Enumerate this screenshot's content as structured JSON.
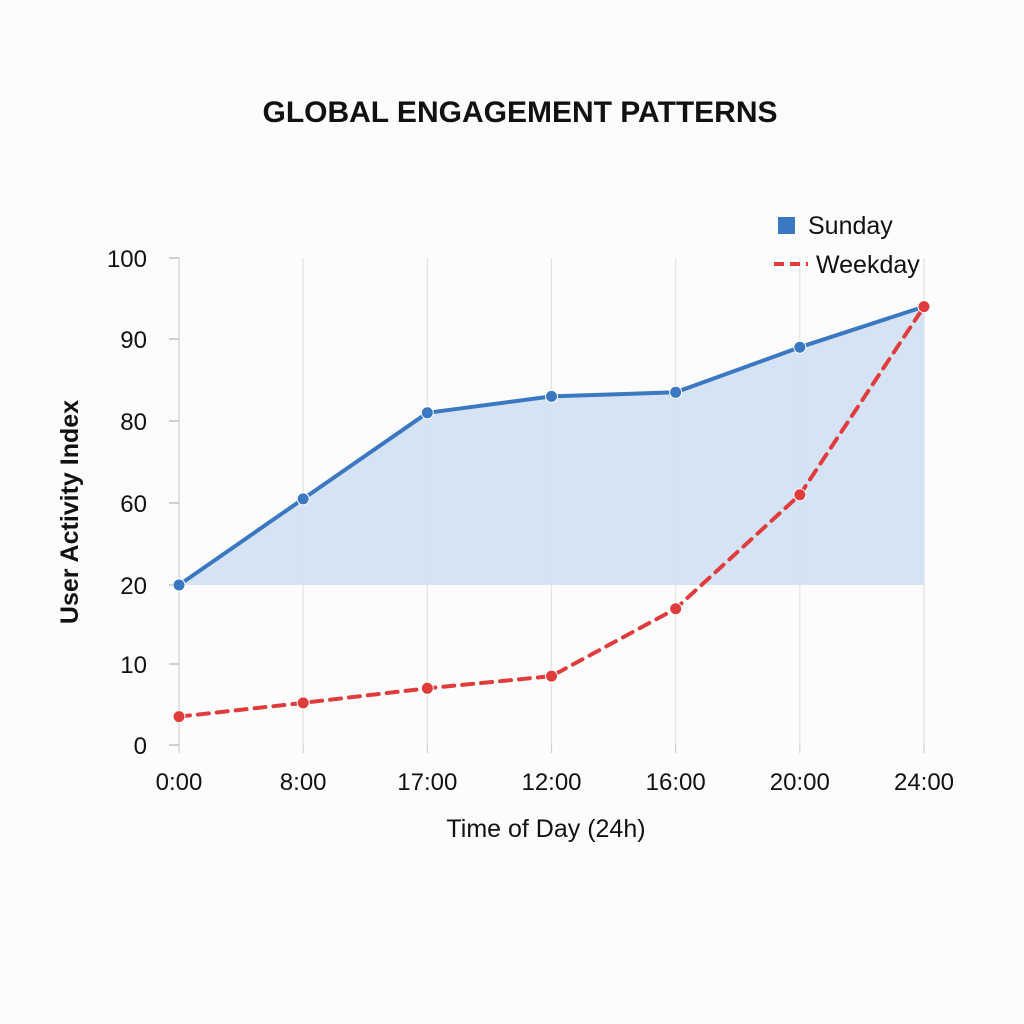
{
  "chart_data": {
    "type": "line",
    "title": "GLOBAL ENGAGEMENT PATTERNS",
    "xlabel": "Time of Day (24h)",
    "ylabel": "User Activity Index",
    "categories": [
      "0:00",
      "8:00",
      "17:00",
      "12:00",
      "16:00",
      "20:00",
      "24:00"
    ],
    "y_ticks": [
      "100",
      "90",
      "80",
      "60",
      "20",
      "10",
      "0"
    ],
    "grid": "vertical",
    "legend": "top-right",
    "series": [
      {
        "name": "Sunday",
        "style": "solid-area",
        "color": "#3a78c2",
        "fill": "#d4e1f4",
        "values": [
          20,
          61,
          81,
          83,
          83.5,
          89,
          94
        ]
      },
      {
        "name": "Weekday",
        "style": "dashed",
        "color": "#e03c3c",
        "values": [
          3.5,
          5.2,
          7,
          8.5,
          17,
          62,
          94
        ]
      }
    ]
  }
}
